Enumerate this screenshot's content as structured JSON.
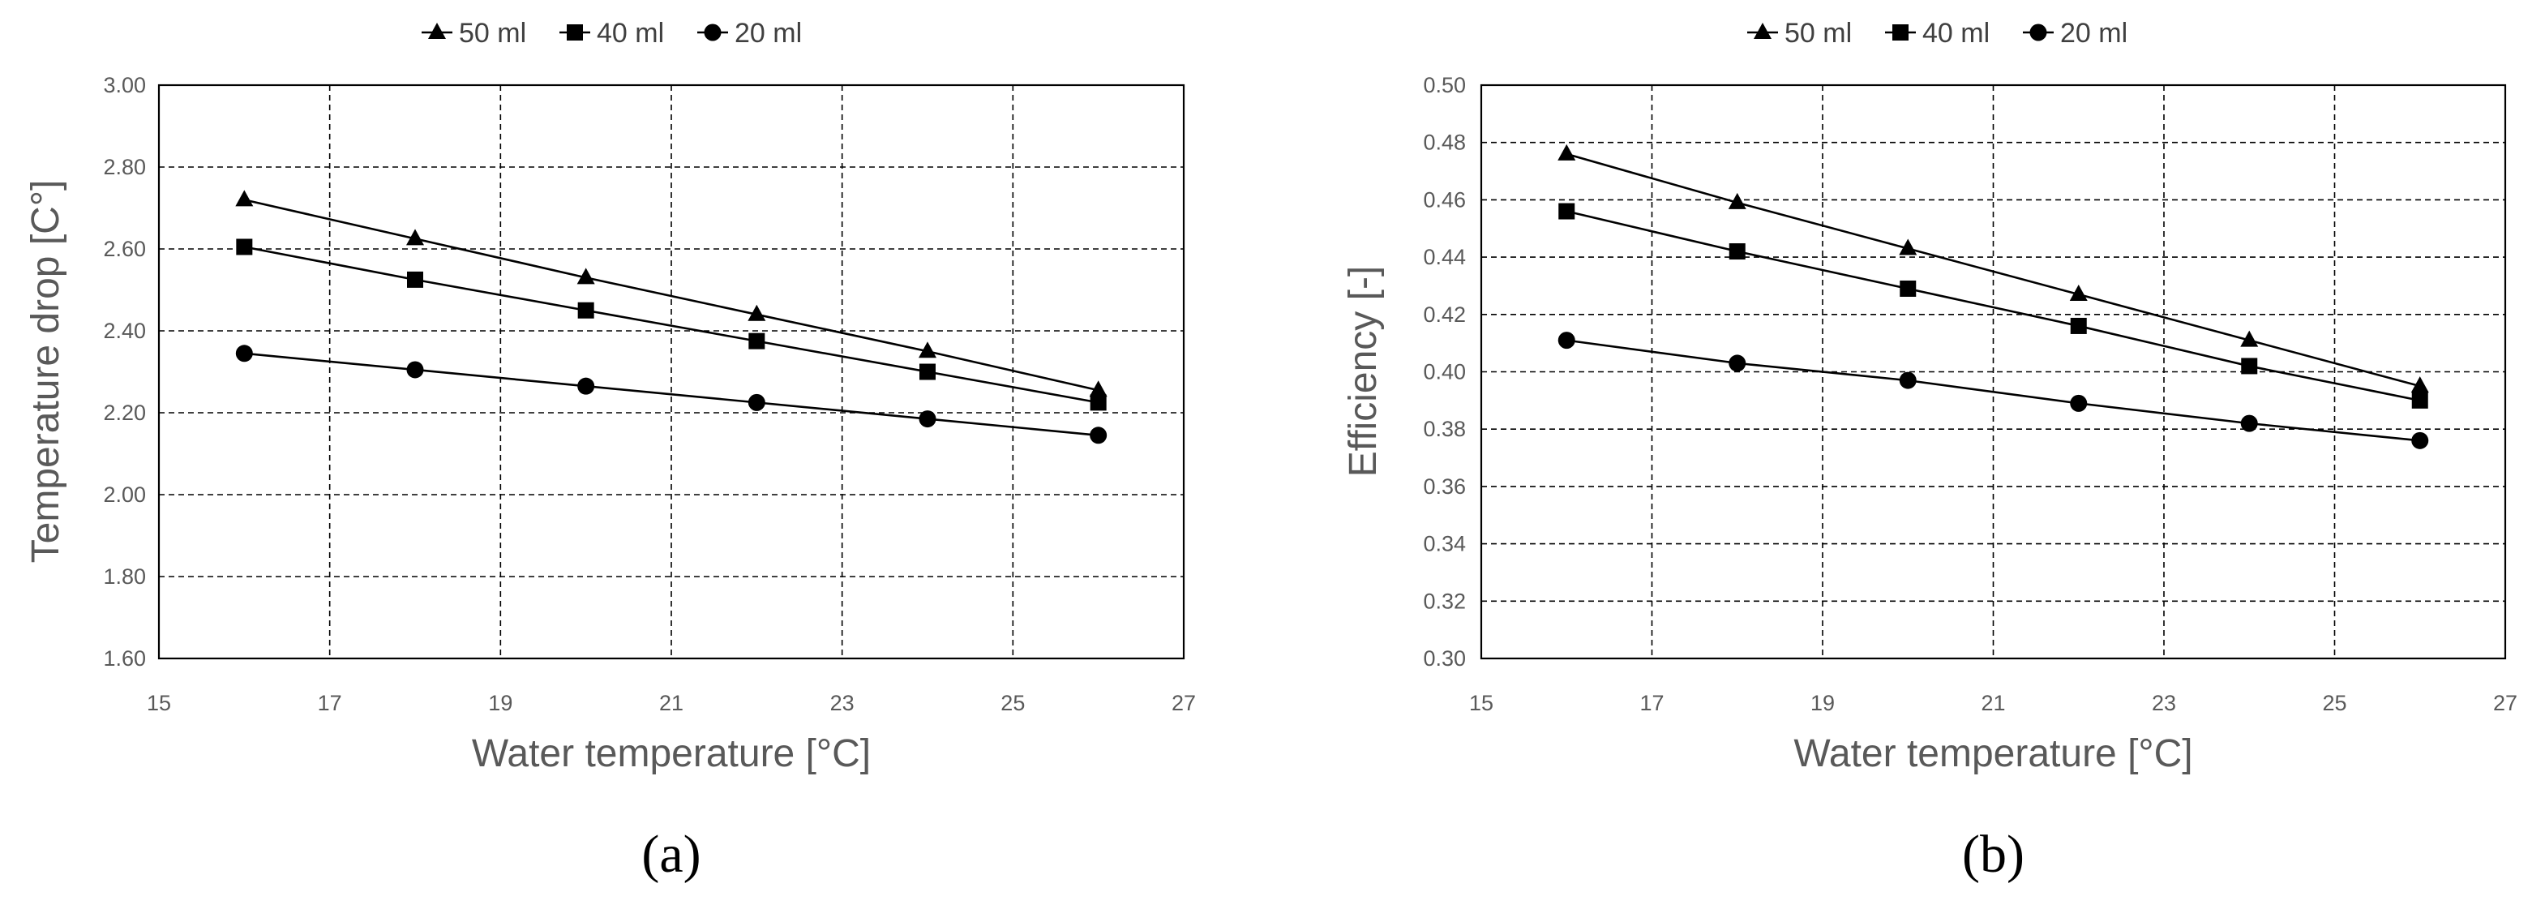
{
  "chart_data": [
    {
      "type": "line",
      "panel_label": "(a)",
      "xlabel": "Water temperature [°C]",
      "ylabel": "Temperature drop [C°]",
      "xlim": [
        15,
        27
      ],
      "ylim": [
        1.6,
        3.0
      ],
      "xticks": [
        15,
        17,
        19,
        21,
        23,
        25,
        27
      ],
      "xtick_labels": [
        "15",
        "17",
        "19",
        "21",
        "23",
        "25",
        "27"
      ],
      "yticks": [
        1.6,
        1.8,
        2.0,
        2.2,
        2.4,
        2.6,
        2.8,
        3.0
      ],
      "ytick_labels": [
        "1.60",
        "1.80",
        "2.00",
        "2.20",
        "2.40",
        "2.60",
        "2.80",
        "3.00"
      ],
      "grid": true,
      "legend_position": "top",
      "x": [
        16,
        18,
        20,
        22,
        24,
        26
      ],
      "series": [
        {
          "name": "50 ml",
          "marker": "triangle",
          "values": [
            2.72,
            2.625,
            2.53,
            2.44,
            2.35,
            2.255
          ]
        },
        {
          "name": "40 ml",
          "marker": "square",
          "values": [
            2.605,
            2.525,
            2.45,
            2.375,
            2.3,
            2.225
          ]
        },
        {
          "name": "20 ml",
          "marker": "circle",
          "values": [
            2.345,
            2.305,
            2.265,
            2.225,
            2.185,
            2.145
          ]
        }
      ]
    },
    {
      "type": "line",
      "panel_label": "(b)",
      "xlabel": "Water temperature [°C]",
      "ylabel": "Efficiency [-]",
      "xlim": [
        15,
        27
      ],
      "ylim": [
        0.3,
        0.5
      ],
      "xticks": [
        15,
        17,
        19,
        21,
        23,
        25,
        27
      ],
      "xtick_labels": [
        "15",
        "17",
        "19",
        "21",
        "23",
        "25",
        "27"
      ],
      "yticks": [
        0.3,
        0.32,
        0.34,
        0.36,
        0.38,
        0.4,
        0.42,
        0.44,
        0.46,
        0.48,
        0.5
      ],
      "ytick_labels": [
        "0.30",
        "0.32",
        "0.34",
        "0.36",
        "0.38",
        "0.40",
        "0.42",
        "0.44",
        "0.46",
        "0.48",
        "0.50"
      ],
      "grid": true,
      "legend_position": "top",
      "x": [
        16,
        18,
        20,
        22,
        24,
        26
      ],
      "series": [
        {
          "name": "50 ml",
          "marker": "triangle",
          "values": [
            0.476,
            0.459,
            0.443,
            0.427,
            0.411,
            0.395
          ]
        },
        {
          "name": "40 ml",
          "marker": "square",
          "values": [
            0.456,
            0.442,
            0.429,
            0.416,
            0.402,
            0.39
          ]
        },
        {
          "name": "20 ml",
          "marker": "circle",
          "values": [
            0.411,
            0.403,
            0.397,
            0.389,
            0.382,
            0.376
          ]
        }
      ]
    }
  ]
}
